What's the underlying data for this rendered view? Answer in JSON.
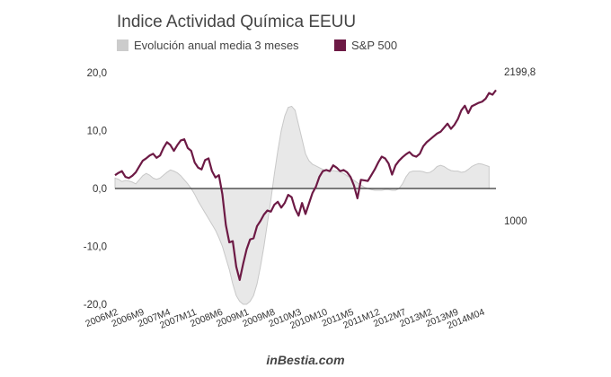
{
  "chart_data": {
    "type": "line",
    "title": "Indice Actividad Química EEUU",
    "legend": {
      "placement": "top-left",
      "entries": [
        {
          "name": "Evolución anual media 3 meses",
          "color": "#cccccc",
          "kind": "area"
        },
        {
          "name": "S&P 500",
          "color": "#6d1a45",
          "kind": "line"
        }
      ]
    },
    "y_left": {
      "ylim": [
        -20,
        20
      ],
      "ticks": [
        20,
        10,
        0,
        -10,
        -20
      ],
      "tick_labels": [
        "20,0",
        "10,0",
        "0,0",
        "-10,0",
        "-20,0"
      ]
    },
    "y_right": {
      "labels": [
        {
          "text": "2199,8",
          "value": 2199.8
        },
        {
          "text": "1000",
          "value": 1000
        }
      ]
    },
    "x_tick_labels": [
      "2006M2",
      "2006M9",
      "2007M4",
      "2007M11",
      "2008M6",
      "2009M1",
      "2009M8",
      "2010M3",
      "2010M10",
      "2011M5",
      "2011M12",
      "2012M7",
      "2013M2",
      "2013M9",
      "2014M04"
    ],
    "x_start": "2006M2",
    "x_end": "2014M08",
    "grid": false,
    "series": [
      {
        "name": "Evolución anual media 3 meses",
        "type": "area",
        "color": "#cccccc",
        "values": [
          1.8,
          1.6,
          1.2,
          1.4,
          1.3,
          1.1,
          0.8,
          1.5,
          2.2,
          2.6,
          2.3,
          1.8,
          1.6,
          1.8,
          2.3,
          2.8,
          3.2,
          3.0,
          2.7,
          2.2,
          1.5,
          0.8,
          0.0,
          -1.0,
          -2.2,
          -3.2,
          -4.2,
          -5.2,
          -6.2,
          -7.2,
          -8.5,
          -10.0,
          -12.0,
          -14.0,
          -16.5,
          -18.5,
          -19.5,
          -20.0,
          -20.0,
          -19.5,
          -18.5,
          -16.5,
          -13.5,
          -10.0,
          -6.0,
          -2.0,
          2.5,
          6.5,
          10.0,
          12.5,
          14.0,
          14.2,
          13.5,
          11.0,
          8.5,
          6.0,
          4.8,
          4.2,
          3.9,
          3.6,
          3.3,
          3.1,
          3.0,
          3.1,
          3.0,
          2.9,
          2.6,
          2.2,
          1.8,
          1.4,
          1.0,
          0.6,
          0.2,
          0.0,
          -0.2,
          -0.3,
          -0.3,
          -0.3,
          -0.2,
          -0.2,
          -0.3,
          -0.3,
          0.0,
          0.8,
          2.0,
          2.8,
          3.0,
          3.0,
          3.0,
          2.9,
          2.7,
          2.8,
          3.2,
          3.8,
          4.0,
          3.8,
          3.4,
          3.1,
          3.0,
          3.0,
          2.8,
          2.9,
          3.3,
          3.8,
          4.1,
          4.3,
          4.2,
          4.0,
          3.8
        ]
      },
      {
        "name": "S&P 500",
        "type": "line",
        "color": "#6d1a45",
        "values": [
          2.3,
          2.7,
          3.0,
          2.0,
          1.8,
          2.2,
          2.8,
          3.8,
          4.8,
          5.2,
          5.7,
          6.0,
          5.3,
          5.7,
          7.0,
          8.0,
          7.5,
          6.5,
          7.5,
          8.3,
          8.5,
          7.0,
          6.5,
          4.5,
          3.6,
          3.3,
          4.9,
          5.2,
          3.0,
          1.9,
          2.3,
          -1.0,
          -6.3,
          -9.3,
          -9.1,
          -13.5,
          -15.8,
          -13.0,
          -10.5,
          -8.8,
          -8.6,
          -6.5,
          -5.6,
          -4.5,
          -3.8,
          -4.0,
          -2.8,
          -2.3,
          -3.3,
          -2.5,
          -1.1,
          -1.5,
          -3.5,
          -4.7,
          -2.5,
          -4.4,
          -2.6,
          -0.8,
          0.3,
          2.0,
          3.0,
          3.2,
          3.0,
          4.0,
          3.6,
          3.0,
          3.2,
          2.8,
          2.0,
          0.5,
          -1.7,
          1.5,
          1.4,
          1.3,
          2.3,
          3.3,
          4.5,
          5.5,
          5.2,
          4.3,
          2.4,
          4.0,
          4.8,
          5.4,
          5.9,
          6.3,
          5.7,
          5.5,
          6.0,
          7.3,
          8.0,
          8.5,
          9.0,
          9.5,
          9.8,
          10.5,
          11.2,
          10.3,
          11.0,
          12.0,
          13.5,
          14.3,
          13.0,
          14.2,
          14.5,
          14.8,
          15.0,
          15.5,
          16.5,
          16.2,
          17.0
        ]
      }
    ],
    "annotation": "inBestia.com"
  }
}
